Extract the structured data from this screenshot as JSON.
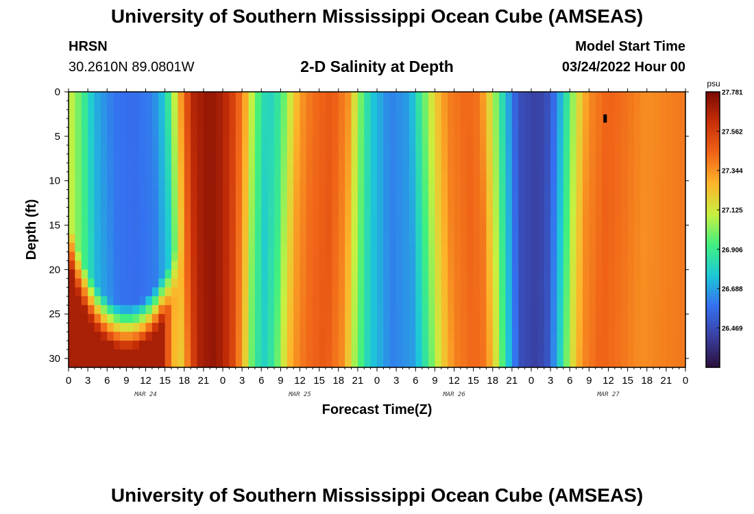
{
  "header": {
    "title": "University of Southern Mississippi Ocean Cube (AMSEAS)",
    "station": "HRSN",
    "coords": "30.2610N  89.0801W",
    "plot_title": "2-D Salinity at Depth",
    "model_label": "Model Start Time",
    "model_date": "03/24/2022 Hour 00"
  },
  "footer": {
    "title": "University of Southern Mississippi Ocean Cube (AMSEAS)"
  },
  "colors": {
    "scale": [
      "#2a0f3b",
      "#3a3fa0",
      "#3570f0",
      "#1dc8d8",
      "#40f080",
      "#c8f040",
      "#fdb52a",
      "#f06418",
      "#c82f08",
      "#7a0a04"
    ]
  },
  "chart_data": {
    "type": "heatmap",
    "title": "2-D Salinity at Depth",
    "xlabel": "Forecast Time(Z)",
    "ylabel": "Depth (ft)",
    "x_range_hours": [
      0,
      96
    ],
    "y_range_ft": [
      0,
      31
    ],
    "x_tick_labels": [
      "0",
      "3",
      "6",
      "9",
      "12",
      "15",
      "18",
      "21",
      "0",
      "3",
      "6",
      "9",
      "12",
      "15",
      "18",
      "21",
      "0",
      "3",
      "6",
      "9",
      "12",
      "15",
      "18",
      "21",
      "0",
      "3",
      "6",
      "9",
      "12",
      "15",
      "18",
      "21",
      "0"
    ],
    "y_ticks": [
      0,
      5,
      10,
      15,
      20,
      25,
      30
    ],
    "day_labels": [
      {
        "hour": 12,
        "label": "MAR 24"
      },
      {
        "hour": 36,
        "label": "MAR 25"
      },
      {
        "hour": 60,
        "label": "MAR 26"
      },
      {
        "hour": 84,
        "label": "MAR 27"
      }
    ],
    "colorbar": {
      "unit": "psu",
      "min": 26.25,
      "max": 27.781,
      "tick_values": [
        "27.781",
        "27.562",
        "27.344",
        "27.125",
        "26.906",
        "26.688",
        "26.469"
      ]
    },
    "surface_salinity_keyframes": [
      {
        "hour": 0,
        "value": 27.13
      },
      {
        "hour": 2,
        "value": 26.95
      },
      {
        "hour": 4,
        "value": 26.72
      },
      {
        "hour": 7,
        "value": 26.6
      },
      {
        "hour": 10,
        "value": 26.58
      },
      {
        "hour": 13,
        "value": 26.62
      },
      {
        "hour": 15,
        "value": 26.78
      },
      {
        "hour": 16.5,
        "value": 27.1
      },
      {
        "hour": 18,
        "value": 27.45
      },
      {
        "hour": 19.5,
        "value": 27.66
      },
      {
        "hour": 22,
        "value": 27.73
      },
      {
        "hour": 24,
        "value": 27.67
      },
      {
        "hour": 26,
        "value": 27.52
      },
      {
        "hour": 27.5,
        "value": 27.3
      },
      {
        "hour": 29,
        "value": 27.0
      },
      {
        "hour": 31,
        "value": 26.78
      },
      {
        "hour": 33,
        "value": 26.9
      },
      {
        "hour": 34.5,
        "value": 27.12
      },
      {
        "hour": 36,
        "value": 27.32
      },
      {
        "hour": 38,
        "value": 27.42
      },
      {
        "hour": 41,
        "value": 27.48
      },
      {
        "hour": 43.5,
        "value": 27.35
      },
      {
        "hour": 45,
        "value": 27.06
      },
      {
        "hour": 47,
        "value": 26.78
      },
      {
        "hour": 50,
        "value": 26.62
      },
      {
        "hour": 53,
        "value": 26.68
      },
      {
        "hour": 55,
        "value": 26.93
      },
      {
        "hour": 57,
        "value": 27.2
      },
      {
        "hour": 59,
        "value": 27.38
      },
      {
        "hour": 62,
        "value": 27.44
      },
      {
        "hour": 64,
        "value": 27.4
      },
      {
        "hour": 66,
        "value": 27.1
      },
      {
        "hour": 68,
        "value": 26.75
      },
      {
        "hour": 70,
        "value": 26.48
      },
      {
        "hour": 73,
        "value": 26.42
      },
      {
        "hour": 75,
        "value": 26.5
      },
      {
        "hour": 77,
        "value": 26.78
      },
      {
        "hour": 79,
        "value": 27.12
      },
      {
        "hour": 81,
        "value": 27.36
      },
      {
        "hour": 84,
        "value": 27.45
      },
      {
        "hour": 87,
        "value": 27.41
      },
      {
        "hour": 90,
        "value": 27.35
      },
      {
        "hour": 93,
        "value": 27.38
      },
      {
        "hour": 96,
        "value": 27.4
      }
    ],
    "bottom_high_salinity_intrusion": {
      "hour_start": 0,
      "hour_end": 18,
      "top_depth_ft_min": 13,
      "top_depth_ft_at_midpoint": 24,
      "bottom_value": 27.68
    },
    "annotation": {
      "type": "marker",
      "hour": 83.5,
      "depth_ft": 3
    }
  }
}
